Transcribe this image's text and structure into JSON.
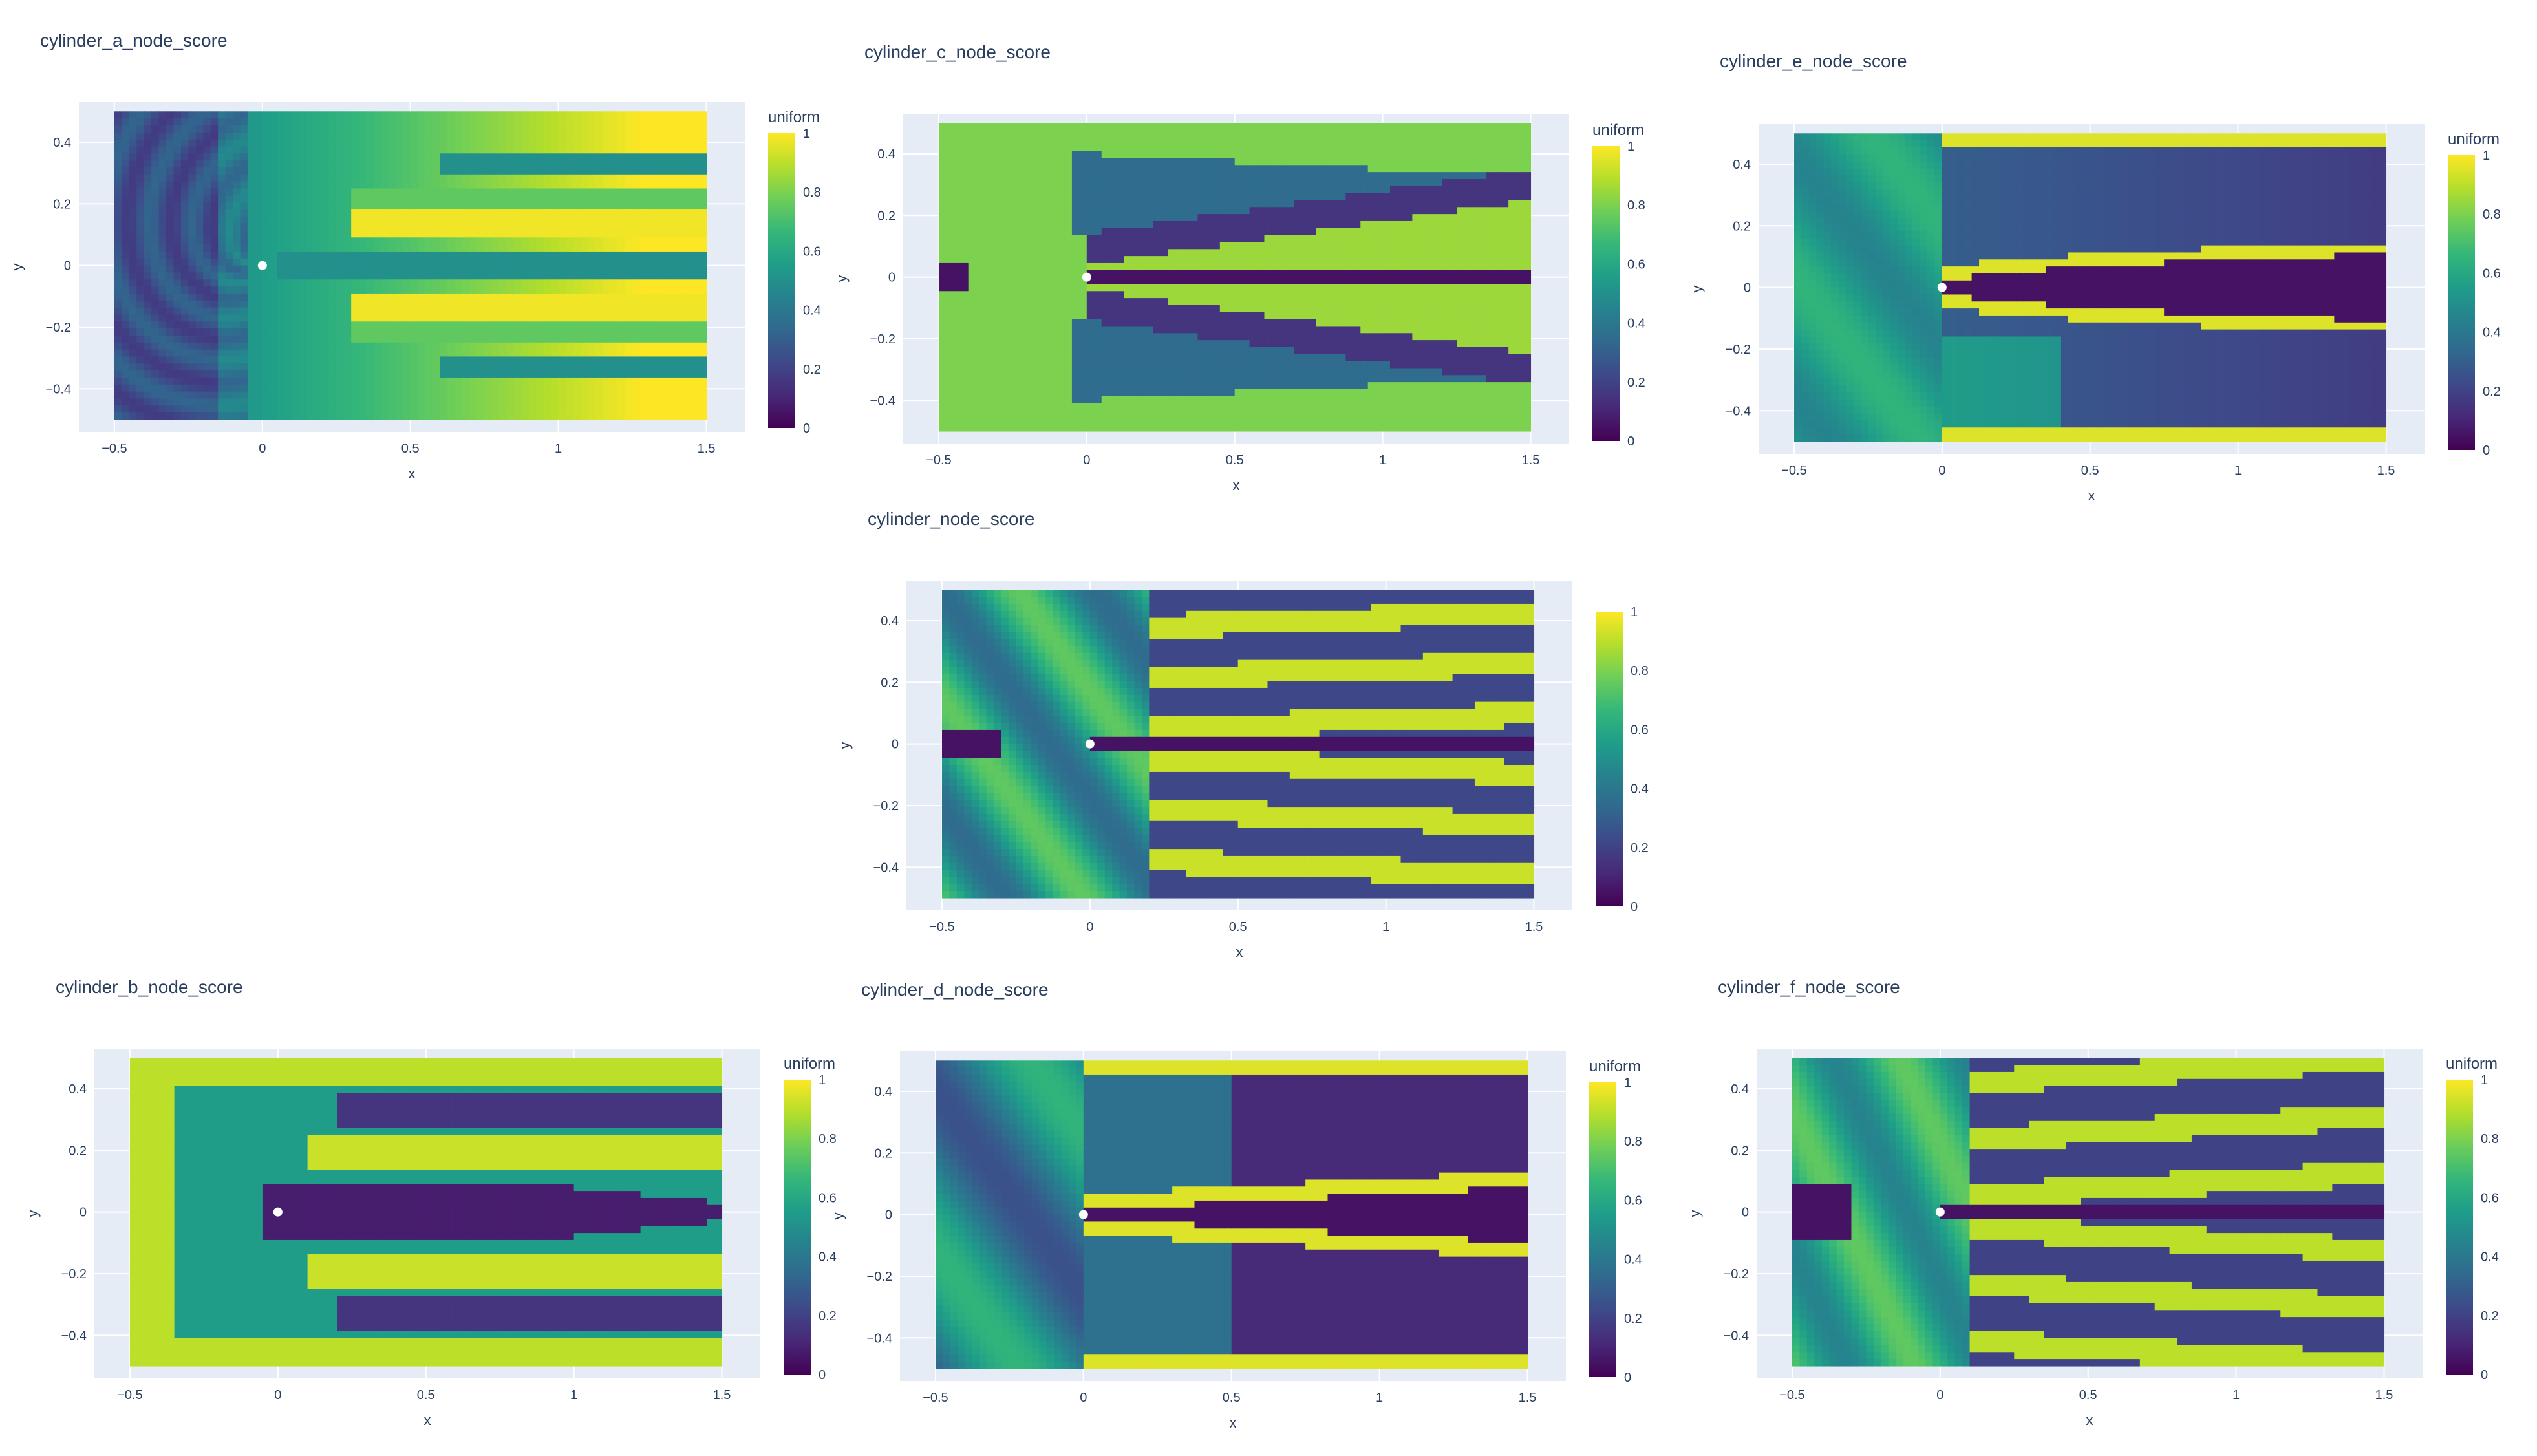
{
  "figure": {
    "colorscale": [
      "#440154",
      "#482878",
      "#3e4989",
      "#31688e",
      "#26828e",
      "#1f9e89",
      "#35b779",
      "#6ece58",
      "#b5de2b",
      "#fde725"
    ],
    "plot_bg": "#e5ecf6",
    "marker_color": "#ffffff"
  },
  "chart_data": [
    {
      "id": "a",
      "type": "heatmap",
      "title": "cylinder_a_node_score",
      "xlabel": "x",
      "ylabel": "y",
      "xlim": [
        -0.62,
        1.63
      ],
      "ylim": [
        -0.54,
        0.53
      ],
      "domain": {
        "x": [
          -0.5,
          1.5
        ],
        "y": [
          -0.5,
          0.5
        ]
      },
      "x_ticks": [
        -0.5,
        0,
        0.5,
        1,
        1.5
      ],
      "x_tick_labels": [
        "−0.5",
        "0",
        "0.5",
        "1",
        "1.5"
      ],
      "y_ticks": [
        -0.4,
        -0.2,
        0,
        0.2,
        0.4
      ],
      "y_tick_labels": [
        "−0.4",
        "−0.2",
        "0",
        "0.2",
        "0.4"
      ],
      "colorbar": {
        "title": "uniform",
        "range": [
          0,
          1
        ],
        "ticks": [
          0,
          0.2,
          0.4,
          0.6,
          0.8,
          1
        ],
        "tick_labels": [
          "0",
          "0.2",
          "0.4",
          "0.6",
          "0.8",
          "1"
        ]
      },
      "cylinder_center": [
        0,
        0
      ],
      "pattern": "a"
    },
    {
      "id": "c",
      "type": "heatmap",
      "title": "cylinder_c_node_score",
      "xlabel": "x",
      "ylabel": "y",
      "xlim": [
        -0.62,
        1.63
      ],
      "ylim": [
        -0.54,
        0.53
      ],
      "domain": {
        "x": [
          -0.5,
          1.5
        ],
        "y": [
          -0.5,
          0.5
        ]
      },
      "x_ticks": [
        -0.5,
        0,
        0.5,
        1,
        1.5
      ],
      "x_tick_labels": [
        "−0.5",
        "0",
        "0.5",
        "1",
        "1.5"
      ],
      "y_ticks": [
        -0.4,
        -0.2,
        0,
        0.2,
        0.4
      ],
      "y_tick_labels": [
        "−0.4",
        "−0.2",
        "0",
        "0.2",
        "0.4"
      ],
      "colorbar": {
        "title": "uniform",
        "range": [
          0,
          1
        ],
        "ticks": [
          0,
          0.2,
          0.4,
          0.6,
          0.8,
          1
        ],
        "tick_labels": [
          "0",
          "0.2",
          "0.4",
          "0.6",
          "0.8",
          "1"
        ]
      },
      "cylinder_center": [
        0,
        0
      ],
      "pattern": "c"
    },
    {
      "id": "e",
      "type": "heatmap",
      "title": "cylinder_e_node_score",
      "xlabel": "x",
      "ylabel": "y",
      "xlim": [
        -0.62,
        1.63
      ],
      "ylim": [
        -0.54,
        0.53
      ],
      "domain": {
        "x": [
          -0.5,
          1.5
        ],
        "y": [
          -0.5,
          0.5
        ]
      },
      "x_ticks": [
        -0.5,
        0,
        0.5,
        1,
        1.5
      ],
      "x_tick_labels": [
        "−0.5",
        "0",
        "0.5",
        "1",
        "1.5"
      ],
      "y_ticks": [
        -0.4,
        -0.2,
        0,
        0.2,
        0.4
      ],
      "y_tick_labels": [
        "−0.4",
        "−0.2",
        "0",
        "0.2",
        "0.4"
      ],
      "colorbar": {
        "title": "uniform",
        "range": [
          0,
          1
        ],
        "ticks": [
          0,
          0.2,
          0.4,
          0.6,
          0.8,
          1
        ],
        "tick_labels": [
          "0",
          "0.2",
          "0.4",
          "0.6",
          "0.8",
          "1"
        ]
      },
      "cylinder_center": [
        0,
        0
      ],
      "pattern": "e"
    },
    {
      "id": "base",
      "type": "heatmap",
      "title": "cylinder_node_score",
      "xlabel": "x",
      "ylabel": "y",
      "xlim": [
        -0.62,
        1.63
      ],
      "ylim": [
        -0.54,
        0.53
      ],
      "domain": {
        "x": [
          -0.5,
          1.5
        ],
        "y": [
          -0.5,
          0.5
        ]
      },
      "x_ticks": [
        -0.5,
        0,
        0.5,
        1,
        1.5
      ],
      "x_tick_labels": [
        "−0.5",
        "0",
        "0.5",
        "1",
        "1.5"
      ],
      "y_ticks": [
        -0.4,
        -0.2,
        0,
        0.2,
        0.4
      ],
      "y_tick_labels": [
        "−0.4",
        "−0.2",
        "0",
        "0.2",
        "0.4"
      ],
      "colorbar": {
        "title": "",
        "range": [
          0,
          1
        ],
        "ticks": [
          0,
          0.2,
          0.4,
          0.6,
          0.8,
          1
        ],
        "tick_labels": [
          "0",
          "0.2",
          "0.4",
          "0.6",
          "0.8",
          "1"
        ]
      },
      "cylinder_center": [
        0,
        0
      ],
      "pattern": "base"
    },
    {
      "id": "b",
      "type": "heatmap",
      "title": "cylinder_b_node_score",
      "xlabel": "x",
      "ylabel": "y",
      "xlim": [
        -0.62,
        1.63
      ],
      "ylim": [
        -0.54,
        0.53
      ],
      "domain": {
        "x": [
          -0.5,
          1.5
        ],
        "y": [
          -0.5,
          0.5
        ]
      },
      "x_ticks": [
        -0.5,
        0,
        0.5,
        1,
        1.5
      ],
      "x_tick_labels": [
        "−0.5",
        "0",
        "0.5",
        "1",
        "1.5"
      ],
      "y_ticks": [
        -0.4,
        -0.2,
        0,
        0.2,
        0.4
      ],
      "y_tick_labels": [
        "−0.4",
        "−0.2",
        "0",
        "0.2",
        "0.4"
      ],
      "colorbar": {
        "title": "uniform",
        "range": [
          0,
          1
        ],
        "ticks": [
          0,
          0.2,
          0.4,
          0.6,
          0.8,
          1
        ],
        "tick_labels": [
          "0",
          "0.2",
          "0.4",
          "0.6",
          "0.8",
          "1"
        ]
      },
      "cylinder_center": [
        0,
        0
      ],
      "pattern": "b"
    },
    {
      "id": "d",
      "type": "heatmap",
      "title": "cylinder_d_node_score",
      "xlabel": "x",
      "ylabel": "y",
      "xlim": [
        -0.62,
        1.63
      ],
      "ylim": [
        -0.54,
        0.53
      ],
      "domain": {
        "x": [
          -0.5,
          1.5
        ],
        "y": [
          -0.5,
          0.5
        ]
      },
      "x_ticks": [
        -0.5,
        0,
        0.5,
        1,
        1.5
      ],
      "x_tick_labels": [
        "−0.5",
        "0",
        "0.5",
        "1",
        "1.5"
      ],
      "y_ticks": [
        -0.4,
        -0.2,
        0,
        0.2,
        0.4
      ],
      "y_tick_labels": [
        "−0.4",
        "−0.2",
        "0",
        "0.2",
        "0.4"
      ],
      "colorbar": {
        "title": "uniform",
        "range": [
          0,
          1
        ],
        "ticks": [
          0,
          0.2,
          0.4,
          0.6,
          0.8,
          1
        ],
        "tick_labels": [
          "0",
          "0.2",
          "0.4",
          "0.6",
          "0.8",
          "1"
        ]
      },
      "cylinder_center": [
        0,
        0
      ],
      "pattern": "d"
    },
    {
      "id": "f",
      "type": "heatmap",
      "title": "cylinder_f_node_score",
      "xlabel": "x",
      "ylabel": "y",
      "xlim": [
        -0.62,
        1.63
      ],
      "ylim": [
        -0.54,
        0.53
      ],
      "domain": {
        "x": [
          -0.5,
          1.5
        ],
        "y": [
          -0.5,
          0.5
        ]
      },
      "x_ticks": [
        -0.5,
        0,
        0.5,
        1,
        1.5
      ],
      "x_tick_labels": [
        "−0.5",
        "0",
        "0.5",
        "1",
        "1.5"
      ],
      "y_ticks": [
        -0.4,
        -0.2,
        0,
        0.2,
        0.4
      ],
      "y_tick_labels": [
        "−0.4",
        "−0.2",
        "0",
        "0.2",
        "0.4"
      ],
      "colorbar": {
        "title": "uniform",
        "range": [
          0,
          1
        ],
        "ticks": [
          0,
          0.2,
          0.4,
          0.6,
          0.8,
          1
        ],
        "tick_labels": [
          "0",
          "0.2",
          "0.4",
          "0.6",
          "0.8",
          "1"
        ]
      },
      "cylinder_center": [
        0,
        0
      ],
      "pattern": "f"
    }
  ]
}
